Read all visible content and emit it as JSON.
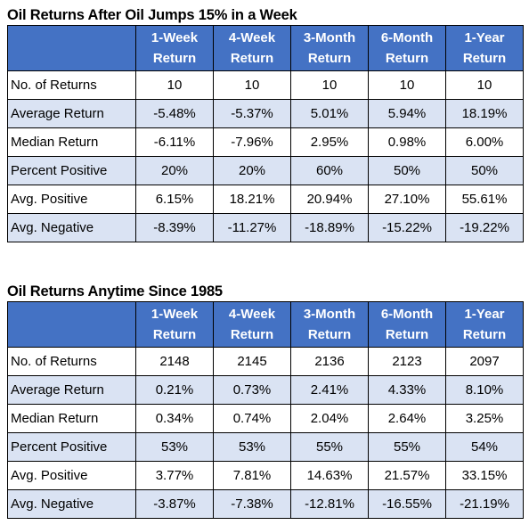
{
  "tables": [
    {
      "title": "Oil Returns After Oil Jumps 15% in a Week",
      "headers": [
        {
          "line1": "1-Week",
          "line2": "Return"
        },
        {
          "line1": "4-Week",
          "line2": "Return"
        },
        {
          "line1": "3-Month",
          "line2": "Return"
        },
        {
          "line1": "6-Month",
          "line2": "Return"
        },
        {
          "line1": "1-Year",
          "line2": "Return"
        }
      ],
      "rows": [
        {
          "label": "No. of Returns",
          "values": [
            "10",
            "10",
            "10",
            "10",
            "10"
          ]
        },
        {
          "label": "Average Return",
          "values": [
            "-5.48%",
            "-5.37%",
            "5.01%",
            "5.94%",
            "18.19%"
          ]
        },
        {
          "label": "Median Return",
          "values": [
            "-6.11%",
            "-7.96%",
            "2.95%",
            "0.98%",
            "6.00%"
          ]
        },
        {
          "label": "Percent Positive",
          "values": [
            "20%",
            "20%",
            "60%",
            "50%",
            "50%"
          ]
        },
        {
          "label": "Avg. Positive",
          "values": [
            "6.15%",
            "18.21%",
            "20.94%",
            "27.10%",
            "55.61%"
          ]
        },
        {
          "label": "Avg. Negative",
          "values": [
            "-8.39%",
            "-11.27%",
            "-18.89%",
            "-15.22%",
            "-19.22%"
          ]
        }
      ]
    },
    {
      "title": "Oil Returns Anytime Since 1985",
      "headers": [
        {
          "line1": "1-Week",
          "line2": "Return"
        },
        {
          "line1": "4-Week",
          "line2": "Return"
        },
        {
          "line1": "3-Month",
          "line2": "Return"
        },
        {
          "line1": "6-Month",
          "line2": "Return"
        },
        {
          "line1": "1-Year",
          "line2": "Return"
        }
      ],
      "rows": [
        {
          "label": "No. of Returns",
          "values": [
            "2148",
            "2145",
            "2136",
            "2123",
            "2097"
          ]
        },
        {
          "label": "Average Return",
          "values": [
            "0.21%",
            "0.73%",
            "2.41%",
            "4.33%",
            "8.10%"
          ]
        },
        {
          "label": "Median Return",
          "values": [
            "0.34%",
            "0.74%",
            "2.04%",
            "2.64%",
            "3.25%"
          ]
        },
        {
          "label": "Percent Positive",
          "values": [
            "53%",
            "53%",
            "55%",
            "55%",
            "54%"
          ]
        },
        {
          "label": "Avg. Positive",
          "values": [
            "3.77%",
            "7.81%",
            "14.63%",
            "21.57%",
            "33.15%"
          ]
        },
        {
          "label": "Avg. Negative",
          "values": [
            "-3.87%",
            "-7.38%",
            "-12.81%",
            "-16.55%",
            "-21.19%"
          ]
        }
      ]
    }
  ],
  "colors": {
    "header_bg": "#4472c4",
    "header_text": "#ffffff",
    "band_row_bg": "#dae3f3",
    "plain_row_bg": "#ffffff",
    "border": "#000000"
  }
}
